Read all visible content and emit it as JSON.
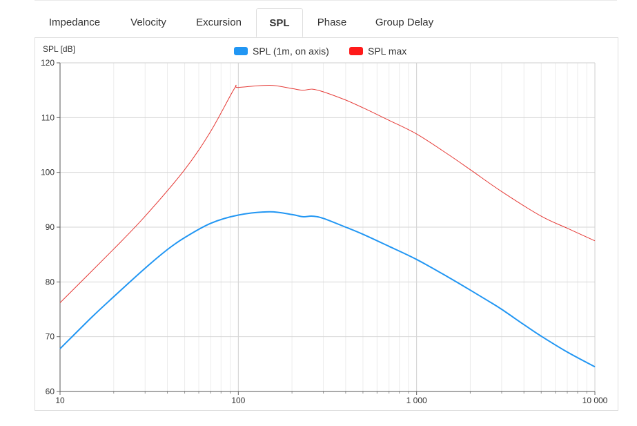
{
  "tabs": [
    {
      "label": "Impedance",
      "active": false
    },
    {
      "label": "Velocity",
      "active": false
    },
    {
      "label": "Excursion",
      "active": false
    },
    {
      "label": "SPL",
      "active": true
    },
    {
      "label": "Phase",
      "active": false
    },
    {
      "label": "Group Delay",
      "active": false
    }
  ],
  "chart_data": {
    "type": "line",
    "title": "",
    "xlabel": "",
    "ylabel": "SPL [dB]",
    "xscale": "log",
    "xlim": [
      10,
      10000
    ],
    "ylim": [
      60,
      120
    ],
    "xticks": [
      10,
      100,
      1000,
      10000
    ],
    "xtick_labels": [
      "10",
      "100",
      "1 000",
      "10 000"
    ],
    "yticks": [
      60,
      70,
      80,
      90,
      100,
      110,
      120
    ],
    "grid": true,
    "legend_position": "top-center",
    "series": [
      {
        "name": "SPL (1m, on axis)",
        "color": "#2196f3",
        "x": [
          10,
          15,
          20,
          30,
          40,
          50,
          70,
          100,
          150,
          200,
          230,
          260,
          300,
          400,
          500,
          700,
          1000,
          1500,
          2000,
          2500,
          3000,
          4000,
          5000,
          7000,
          10000
        ],
        "y": [
          67.8,
          73.5,
          77.3,
          82.5,
          85.9,
          88.1,
          90.7,
          92.2,
          92.8,
          92.3,
          91.9,
          92.0,
          91.6,
          90.0,
          88.7,
          86.5,
          84.1,
          80.9,
          78.5,
          76.6,
          75.0,
          72.2,
          70.1,
          67.2,
          64.5
        ]
      },
      {
        "name": "SPL max",
        "color": "#e53935",
        "x": [
          10,
          20,
          30,
          50,
          70,
          95,
          100,
          150,
          200,
          230,
          260,
          300,
          400,
          500,
          700,
          1000,
          1500,
          2000,
          3000,
          5000,
          7000,
          10000
        ],
        "y": [
          76.2,
          86.0,
          92.0,
          100.5,
          107.5,
          115.3,
          115.5,
          115.9,
          115.3,
          115.0,
          115.2,
          114.7,
          113.2,
          111.8,
          109.5,
          107.0,
          103.3,
          100.5,
          96.5,
          92.0,
          89.8,
          87.5
        ]
      }
    ]
  }
}
